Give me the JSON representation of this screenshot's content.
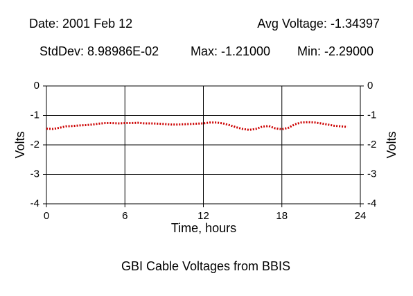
{
  "chart_data": {
    "type": "line",
    "title": "GBI Cable Voltages from BBIS",
    "header": {
      "date": "Date: 2001 Feb 12",
      "avg": "Avg Voltage: -1.34397",
      "stddev": "StdDev: 8.98986E-02",
      "max": "Max: -1.21000",
      "min": "Min: -2.29000"
    },
    "xlabel": "Time, hours",
    "ylabel": "Volts",
    "y2label": "Volts",
    "xlim": [
      0,
      24
    ],
    "xticks": [
      0,
      6,
      12,
      18,
      24
    ],
    "ylim": [
      -4,
      0
    ],
    "yticks": [
      0,
      -1,
      -2,
      -3,
      -4
    ],
    "y2lim": [
      -4,
      0
    ],
    "y2ticks": [
      0,
      -1,
      -2,
      -3,
      -4
    ],
    "grid": true,
    "x": [
      0,
      0.5,
      1,
      1.5,
      2,
      2.5,
      3,
      3.5,
      4,
      4.5,
      5,
      5.5,
      6,
      6.5,
      7,
      7.5,
      8,
      8.5,
      9,
      9.5,
      10,
      10.5,
      11,
      11.5,
      12,
      12.5,
      13,
      13.5,
      14,
      14.5,
      15,
      15.5,
      16,
      16.5,
      17,
      17.5,
      18,
      18.5,
      19,
      19.5,
      20,
      20.5,
      21,
      21.5,
      22,
      22.5,
      23
    ],
    "series": [
      {
        "color": "#cc0000",
        "values": [
          -1.45,
          -1.46,
          -1.42,
          -1.37,
          -1.36,
          -1.34,
          -1.33,
          -1.31,
          -1.28,
          -1.26,
          -1.26,
          -1.27,
          -1.26,
          -1.26,
          -1.25,
          -1.27,
          -1.27,
          -1.28,
          -1.29,
          -1.31,
          -1.31,
          -1.3,
          -1.29,
          -1.28,
          -1.27,
          -1.24,
          -1.24,
          -1.27,
          -1.33,
          -1.4,
          -1.46,
          -1.49,
          -1.46,
          -1.38,
          -1.36,
          -1.44,
          -1.47,
          -1.42,
          -1.3,
          -1.24,
          -1.23,
          -1.24,
          -1.27,
          -1.31,
          -1.35,
          -1.37,
          -1.39
        ]
      }
    ]
  }
}
